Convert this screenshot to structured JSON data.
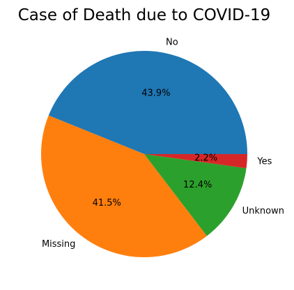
{
  "chart_data": {
    "type": "pie",
    "title": "Case of Death due to COVID-19",
    "slices": [
      {
        "label": "No",
        "value": 43.9,
        "pct_label": "43.9%",
        "color": "#1f77b4"
      },
      {
        "label": "Missing",
        "value": 41.5,
        "pct_label": "41.5%",
        "color": "#ff7f0e"
      },
      {
        "label": "Unknown",
        "value": 12.4,
        "pct_label": "12.4%",
        "color": "#2ca02c"
      },
      {
        "label": "Yes",
        "value": 2.2,
        "pct_label": "2.2%",
        "color": "#d62728"
      }
    ],
    "start_angle_deg": 0,
    "direction": "counterclockwise"
  }
}
